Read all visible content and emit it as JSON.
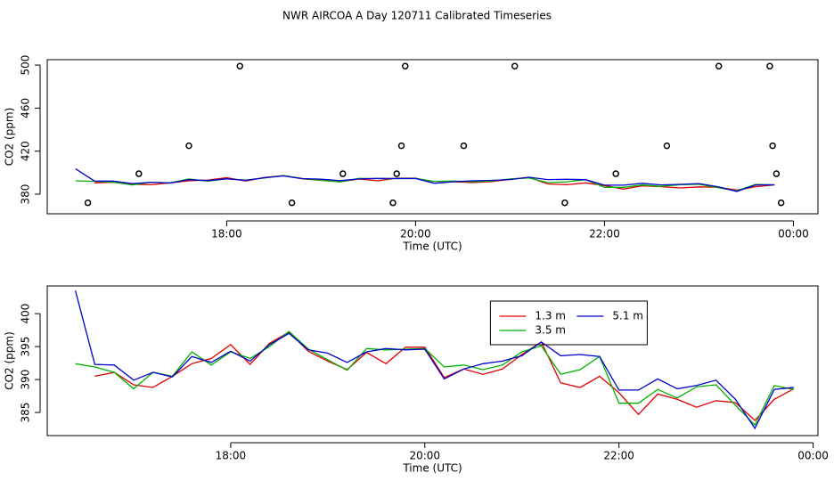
{
  "chart_data": [
    {
      "type": "line",
      "title": "NWR AIRCOA A  Day 120711  Calibrated Timeseries",
      "xlabel": "Time (UTC)",
      "ylabel": "CO2 (ppm)",
      "x": [
        16.4,
        16.6,
        16.8,
        17.0,
        17.2,
        17.4,
        17.6,
        17.8,
        18.0,
        18.2,
        18.4,
        18.6,
        18.8,
        19.0,
        19.2,
        19.4,
        19.6,
        19.8,
        20.0,
        20.2,
        20.4,
        20.6,
        20.8,
        21.0,
        21.2,
        21.4,
        21.6,
        21.8,
        22.0,
        22.2,
        22.4,
        22.6,
        22.8,
        23.0,
        23.2,
        23.4,
        23.6,
        23.8
      ],
      "xlim": [
        16.1,
        24.26
      ],
      "ylim": [
        361.8,
        505
      ],
      "xticks": [
        {
          "value": 18,
          "label": "18:00"
        },
        {
          "value": 20,
          "label": "20:00"
        },
        {
          "value": 22,
          "label": "22:00"
        },
        {
          "value": 24,
          "label": "00:00"
        }
      ],
      "yticks": [
        380,
        420,
        460,
        500
      ],
      "series": [
        {
          "color": "#e00000",
          "values": [
            null,
            390.5,
            391.1,
            389.2,
            388.8,
            390.5,
            392.4,
            393.2,
            395.3,
            392.3,
            395.5,
            397.2,
            394.3,
            392.8,
            391.5,
            394.1,
            392.4,
            394.9,
            394.9,
            390.3,
            391.6,
            390.8,
            391.6,
            393.8,
            395.7,
            389.5,
            388.8,
            390.5,
            388,
            384.7,
            387.8,
            387,
            385.8,
            386.8,
            386.5,
            383.8,
            387,
            388.6
          ]
        },
        {
          "color": "#00b000",
          "values": [
            392.4,
            391.9,
            391.1,
            388.6,
            391.1,
            390.5,
            394.2,
            392.2,
            394.2,
            393.2,
            395,
            397.3,
            394.6,
            393,
            391.4,
            394.7,
            394.5,
            394.6,
            394.7,
            391.9,
            392.2,
            391.5,
            392.2,
            394.2,
            395.1,
            390.8,
            391.5,
            393.5,
            386.4,
            386.4,
            388.5,
            387.2,
            388.9,
            389.2,
            386.1,
            383.1,
            389.1,
            388.5
          ]
        },
        {
          "color": "#0000d0",
          "values": [
            403.5,
            392.3,
            392.2,
            389.9,
            391.1,
            390.4,
            393.5,
            392.6,
            394.3,
            392.8,
            395.3,
            397,
            394.5,
            394,
            392.6,
            394.2,
            394.7,
            394.5,
            394.6,
            390.1,
            391.6,
            392.4,
            392.8,
            393.6,
            395.7,
            393.6,
            393.8,
            393.5,
            388.4,
            388.4,
            390.1,
            388.6,
            389.1,
            389.9,
            387,
            382.6,
            388.5,
            388.8
          ]
        }
      ],
      "markers": {
        "color": "#000000",
        "x": [
          16.53,
          17.07,
          17.6,
          18.14,
          18.69,
          19.23,
          19.76,
          19.8,
          19.85,
          19.89,
          20.51,
          21.05,
          21.58,
          22.12,
          22.66,
          23.21,
          23.75,
          23.78,
          23.82,
          23.87
        ],
        "y": [
          372,
          399,
          425,
          499,
          372,
          399,
          372,
          399,
          425,
          499,
          425,
          499,
          372,
          399,
          425,
          499,
          499,
          425,
          399,
          372
        ]
      }
    },
    {
      "type": "line",
      "xlabel": "Time (UTC)",
      "ylabel": "CO2 (ppm)",
      "x": [
        16.4,
        16.6,
        16.8,
        17.0,
        17.2,
        17.4,
        17.6,
        17.8,
        18.0,
        18.2,
        18.4,
        18.6,
        18.8,
        19.0,
        19.2,
        19.4,
        19.6,
        19.8,
        20.0,
        20.2,
        20.4,
        20.6,
        20.8,
        21.0,
        21.2,
        21.4,
        21.6,
        21.8,
        22.0,
        22.2,
        22.4,
        22.6,
        22.8,
        23.0,
        23.2,
        23.4,
        23.6,
        23.8
      ],
      "xlim": [
        16.11,
        24.05
      ],
      "ylim": [
        381.5,
        404.2
      ],
      "xticks": [
        {
          "value": 18,
          "label": "18:00"
        },
        {
          "value": 20,
          "label": "20:00"
        },
        {
          "value": 22,
          "label": "22:00"
        },
        {
          "value": 24,
          "label": "00:00"
        }
      ],
      "yticks": [
        385,
        390,
        395,
        400
      ],
      "legend": "top",
      "series": [
        {
          "name": "1.3 m",
          "color": "#e00000",
          "values": [
            null,
            390.5,
            391.1,
            389.2,
            388.8,
            390.5,
            392.4,
            393.2,
            395.3,
            392.3,
            395.5,
            397.2,
            394.3,
            392.8,
            391.5,
            394.1,
            392.4,
            394.9,
            394.9,
            390.3,
            391.6,
            390.8,
            391.6,
            393.8,
            395.7,
            389.5,
            388.8,
            390.5,
            388,
            384.7,
            387.8,
            387,
            385.8,
            386.8,
            386.5,
            383.8,
            387,
            388.6
          ]
        },
        {
          "name": "3.5 m",
          "color": "#00b000",
          "values": [
            392.4,
            391.9,
            391.1,
            388.6,
            391.1,
            390.5,
            394.2,
            392.2,
            394.2,
            393.2,
            395,
            397.3,
            394.6,
            393,
            391.4,
            394.7,
            394.5,
            394.6,
            394.7,
            391.9,
            392.2,
            391.5,
            392.2,
            394.2,
            395.1,
            390.8,
            391.5,
            393.5,
            386.4,
            386.4,
            388.5,
            387.2,
            388.9,
            389.2,
            386.1,
            383.1,
            389.1,
            388.5
          ]
        },
        {
          "name": "5.1 m",
          "color": "#0000d0",
          "values": [
            403.5,
            392.3,
            392.2,
            389.9,
            391.1,
            390.4,
            393.5,
            392.6,
            394.3,
            392.8,
            395.3,
            397,
            394.5,
            394,
            392.6,
            394.2,
            394.7,
            394.5,
            394.6,
            390.1,
            391.6,
            392.4,
            392.8,
            393.6,
            395.7,
            393.6,
            393.8,
            393.5,
            388.4,
            388.4,
            390.1,
            388.6,
            389.1,
            389.9,
            387,
            382.6,
            388.5,
            388.8
          ]
        }
      ]
    }
  ]
}
